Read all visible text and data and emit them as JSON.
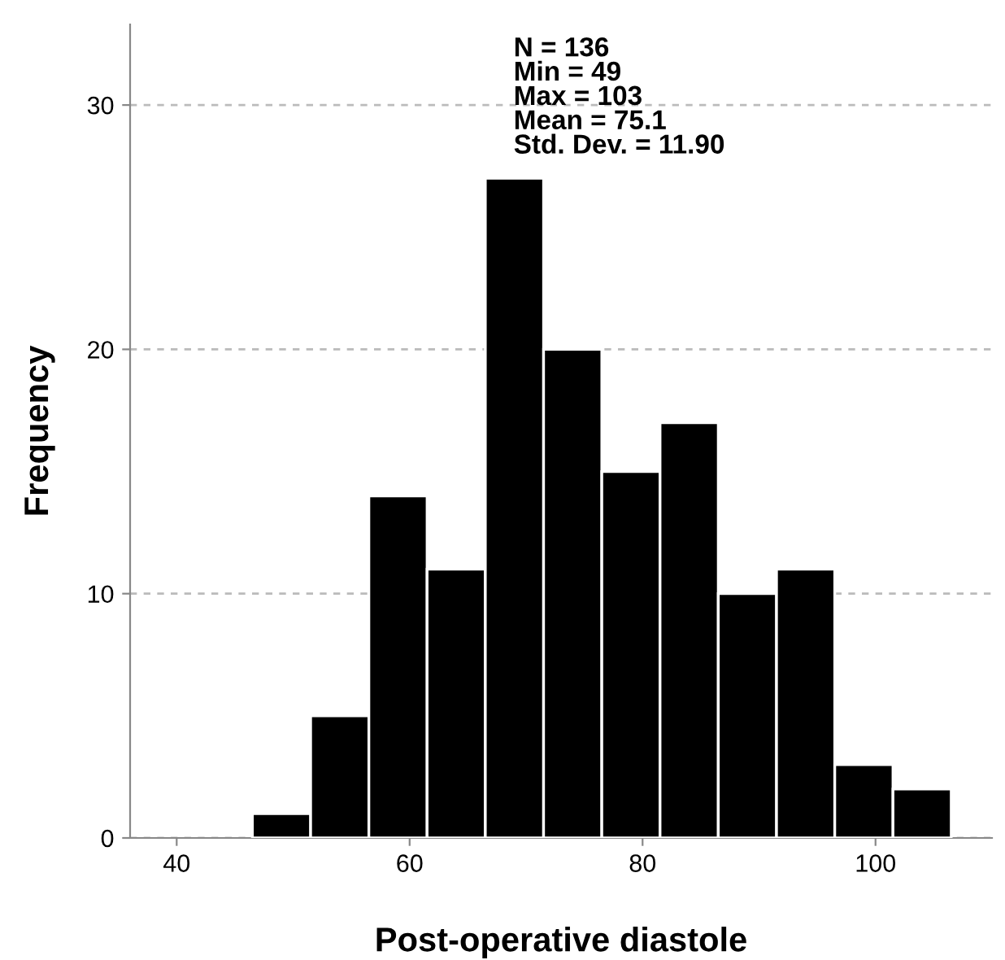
{
  "chart_data": {
    "type": "histogram",
    "xlabel": "Post-operative diastole",
    "ylabel": "Frequency",
    "bins": [
      46.5,
      51.5,
      56.5,
      61.5,
      66.5,
      71.5,
      76.5,
      81.5,
      86.5,
      91.5,
      96.5,
      101.5,
      106.5
    ],
    "values": [
      1,
      5,
      14,
      11,
      27,
      20,
      15,
      17,
      10,
      11,
      3,
      2
    ],
    "color": "#000000",
    "xlim": [
      36,
      110
    ],
    "xticks": [
      40,
      60,
      80,
      100
    ],
    "ylim": [
      0,
      33.3
    ],
    "yticks": [
      0,
      10,
      20,
      30
    ],
    "grid": "y",
    "annotations": [
      "N = 136\nMin = 49\nMax = 103\nMean = 75.1\nStd. Dev. = 11.90"
    ]
  }
}
